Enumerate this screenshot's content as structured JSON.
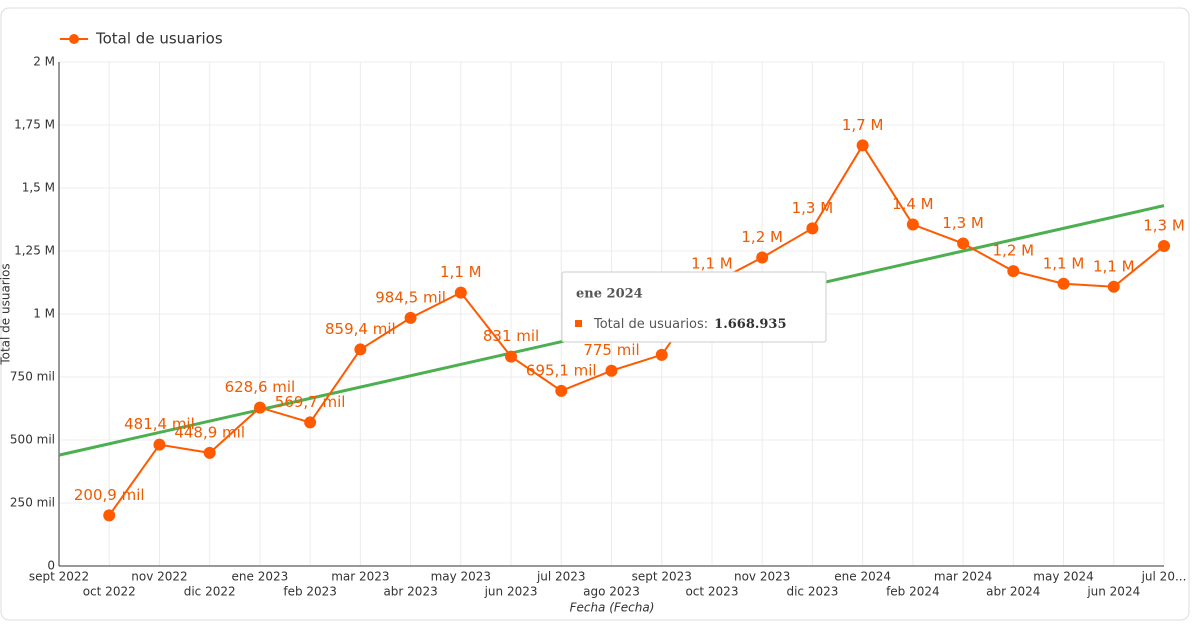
{
  "chart_data": {
    "type": "line",
    "legend": "top-left",
    "grid": true,
    "x_label": "Fecha (Fecha)",
    "y_label": "Total de usuarios",
    "categories": [
      "sept 2022",
      "oct 2022",
      "nov 2022",
      "dic 2022",
      "ene 2023",
      "feb 2023",
      "mar 2023",
      "abr 2023",
      "may 2023",
      "jun 2023",
      "jul 2023",
      "ago 2023",
      "sept 2023",
      "oct 2023",
      "nov 2023",
      "dic 2023",
      "ene 2024",
      "feb 2024",
      "mar 2024",
      "abr 2024",
      "may 2024",
      "jun 2024",
      "jul 20..."
    ],
    "series": [
      {
        "name": "Total de usuarios",
        "color": "#ff5a00",
        "values": [
          null,
          200900,
          481400,
          448900,
          628600,
          569700,
          859400,
          984500,
          1085000,
          831000,
          695100,
          775000,
          838000,
          1120000,
          1224000,
          1340000,
          1668935,
          1355000,
          1280000,
          1170000,
          1120000,
          1108000,
          1270000
        ],
        "value_labels": [
          null,
          "200,9 mil",
          "481,4 mil",
          "448,9 mil",
          "628,6 mil",
          "569,7 mil",
          "859,4 mil",
          "984,5 mil",
          "1,1 M",
          "831 mil",
          "695,1 mil",
          "775 mil",
          null,
          "1,1 M",
          "1,2 M",
          "1,3 M",
          "1,7 M",
          "1,4 M",
          "1,3 M",
          "1,2 M",
          "1,1 M",
          "1,1 M",
          "1,3 M"
        ]
      }
    ],
    "trend": {
      "color": "#4caf50",
      "values": [
        440000,
        1430000
      ]
    },
    "ylim": [
      0,
      2000000
    ],
    "yticks": [
      0,
      {
        "value": 250000,
        "label": "250 mil"
      },
      {
        "value": 500000,
        "label": "500 mil"
      },
      {
        "value": 750000,
        "label": "750 mil"
      },
      {
        "value": 1000000,
        "label": "1 M"
      },
      {
        "value": 1250000,
        "label": "1,25 M"
      },
      {
        "value": 1500000,
        "label": "1,5 M"
      },
      {
        "value": 1750000,
        "label": "1,75 M"
      },
      {
        "value": 2000000,
        "label": "2 M"
      }
    ],
    "tooltip": {
      "title": "ene 2024",
      "label": "Total de usuarios:",
      "value": "1.668.935"
    }
  }
}
